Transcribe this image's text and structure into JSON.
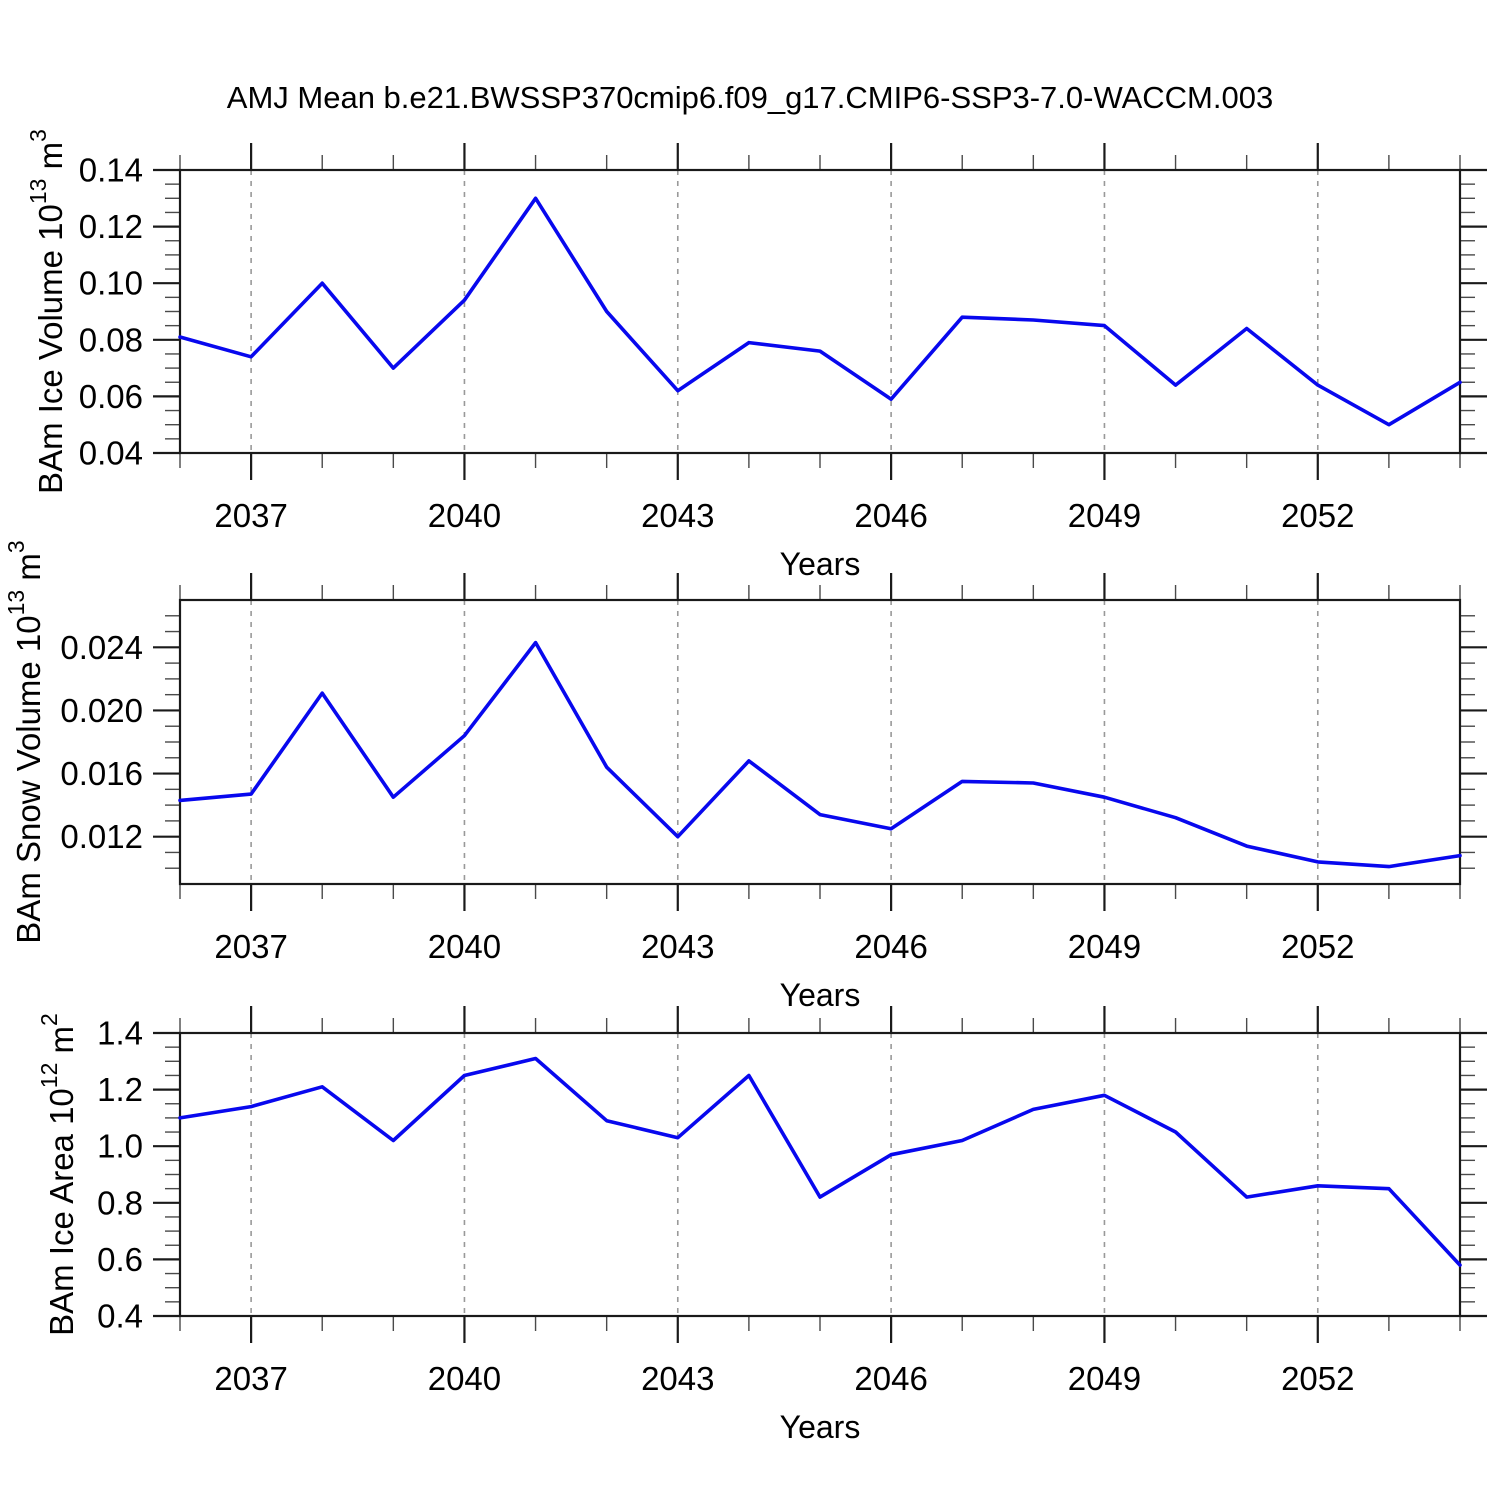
{
  "title": "AMJ Mean b.e21.BWSSP370cmip6.f09_g17.CMIP6-SSP3-7.0-WACCM.003",
  "colors": {
    "line": "#0808ee",
    "grid": "#999999",
    "axis": "#1a1a1a",
    "minor_tick": "#4a4a4a",
    "text": "#000000",
    "background": "#ffffff"
  },
  "chart_data": [
    {
      "type": "line",
      "name": "ice-volume",
      "ylabel_text": "BAm Ice Volume 10^13 m^3",
      "ylabel_prefix": "BAm Ice Volume 10",
      "ylabel_exp": "13",
      "ylabel_unit": " m",
      "ylabel_unit_exp": "3",
      "xlabel": "Years",
      "x": [
        2036,
        2037,
        2038,
        2039,
        2040,
        2041,
        2042,
        2043,
        2044,
        2045,
        2046,
        2047,
        2048,
        2049,
        2050,
        2051,
        2052,
        2053,
        2054
      ],
      "values": [
        0.081,
        0.074,
        0.1,
        0.07,
        0.094,
        0.13,
        0.09,
        0.062,
        0.079,
        0.076,
        0.059,
        0.088,
        0.087,
        0.085,
        0.064,
        0.084,
        0.064,
        0.05,
        0.065
      ],
      "xlim": [
        2036,
        2054
      ],
      "ylim": [
        0.04,
        0.14
      ],
      "yticks": [
        0.04,
        0.06,
        0.08,
        0.1,
        0.12,
        0.14
      ],
      "ytick_labels": [
        "0.04",
        "0.06",
        "0.08",
        "0.10",
        "0.12",
        "0.14"
      ],
      "yminor_step": 0.005,
      "xticks_labeled": [
        2037,
        2040,
        2043,
        2046,
        2049,
        2052
      ],
      "xtick_labels": [
        "2037",
        "2040",
        "2043",
        "2046",
        "2049",
        "2052"
      ],
      "xminor_step": 1,
      "grid": "vertical-dashed"
    },
    {
      "type": "line",
      "name": "snow-volume",
      "ylabel_text": "BAm Snow Volume 10^13 m^3",
      "ylabel_prefix": "BAm Snow Volume 10",
      "ylabel_exp": "13",
      "ylabel_unit": " m",
      "ylabel_unit_exp": "3",
      "xlabel": "Years",
      "x": [
        2036,
        2037,
        2038,
        2039,
        2040,
        2041,
        2042,
        2043,
        2044,
        2045,
        2046,
        2047,
        2048,
        2049,
        2050,
        2051,
        2052,
        2053,
        2054
      ],
      "values": [
        0.0143,
        0.0147,
        0.0211,
        0.0145,
        0.0184,
        0.0243,
        0.0164,
        0.012,
        0.0168,
        0.0134,
        0.0125,
        0.0155,
        0.0154,
        0.0145,
        0.0132,
        0.0114,
        0.0104,
        0.0101,
        0.0108
      ],
      "xlim": [
        2036,
        2054
      ],
      "ylim": [
        0.009,
        0.027
      ],
      "yticks": [
        0.012,
        0.016,
        0.02,
        0.024
      ],
      "ytick_labels": [
        "0.012",
        "0.016",
        "0.020",
        "0.024"
      ],
      "yminor_step": 0.001,
      "xticks_labeled": [
        2037,
        2040,
        2043,
        2046,
        2049,
        2052
      ],
      "xtick_labels": [
        "2037",
        "2040",
        "2043",
        "2046",
        "2049",
        "2052"
      ],
      "xminor_step": 1,
      "grid": "vertical-dashed"
    },
    {
      "type": "line",
      "name": "ice-area",
      "ylabel_text": "BAm Ice Area 10^12 m^2",
      "ylabel_prefix": "BAm Ice Area 10",
      "ylabel_exp": "12",
      "ylabel_unit": " m",
      "ylabel_unit_exp": "2",
      "xlabel": "Years",
      "x": [
        2036,
        2037,
        2038,
        2039,
        2040,
        2041,
        2042,
        2043,
        2044,
        2045,
        2046,
        2047,
        2048,
        2049,
        2050,
        2051,
        2052,
        2053,
        2054
      ],
      "values": [
        1.1,
        1.14,
        1.21,
        1.02,
        1.25,
        1.31,
        1.09,
        1.03,
        1.25,
        0.82,
        0.97,
        1.02,
        1.13,
        1.18,
        1.05,
        0.82,
        0.86,
        0.85,
        0.58
      ],
      "xlim": [
        2036,
        2054
      ],
      "ylim": [
        0.4,
        1.4
      ],
      "yticks": [
        0.4,
        0.6,
        0.8,
        1.0,
        1.2,
        1.4
      ],
      "ytick_labels": [
        "0.4",
        "0.6",
        "0.8",
        "1.0",
        "1.2",
        "1.4"
      ],
      "yminor_step": 0.05,
      "xticks_labeled": [
        2037,
        2040,
        2043,
        2046,
        2049,
        2052
      ],
      "xtick_labels": [
        "2037",
        "2040",
        "2043",
        "2046",
        "2049",
        "2052"
      ],
      "xminor_step": 1,
      "grid": "vertical-dashed"
    }
  ]
}
